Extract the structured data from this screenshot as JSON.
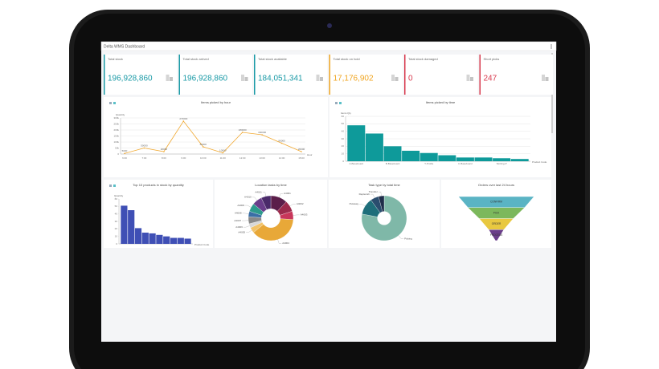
{
  "header": {
    "title": "Delta WMS Dashboard"
  },
  "kpis": [
    {
      "label": "Total stock",
      "value": "196,928,860",
      "color": "#1a9aa6"
    },
    {
      "label": "Total stock arrived",
      "value": "196,928,860",
      "color": "#1a9aa6"
    },
    {
      "label": "Total stock available",
      "value": "184,051,341",
      "color": "#1a9aa6"
    },
    {
      "label": "Total stock on hold",
      "value": "17,176,902",
      "color": "#f0a520"
    },
    {
      "label": "Total stock damaged",
      "value": "0",
      "color": "#d83a4e"
    },
    {
      "label": "Short picks",
      "value": "247",
      "color": "#d83a4e"
    }
  ],
  "chart_data": [
    {
      "type": "line",
      "title": "Items picked by hour",
      "color": "#f0a830",
      "categories": [
        "6:00",
        "7:00",
        "8:00",
        "9:00",
        "10:00",
        "11:00",
        "12:00",
        "13:00",
        "14:00",
        "15:00"
      ],
      "values": [
        5000,
        50000,
        20000,
        273000,
        60000,
        10000,
        180000,
        160000,
        90000,
        20000
      ],
      "value_labels": [
        "5000",
        "50000",
        "20000",
        "273000",
        "60000",
        "10000",
        "180000",
        "160000",
        "90000",
        "20000"
      ],
      "ylim": [
        0,
        300000
      ],
      "yticks": [
        0,
        {
          "value": 50000,
          "label": "50k"
        },
        {
          "value": 100000,
          "label": "100k"
        },
        {
          "value": 150000,
          "label": "150k"
        },
        {
          "value": 200000,
          "label": "200k"
        },
        {
          "value": 250000,
          "label": "250k"
        },
        {
          "value": 300000,
          "label": "300k"
        }
      ],
      "y_label": "Quantity",
      "x_label": "Hour",
      "grid": true
    },
    {
      "type": "bar",
      "title": "Items picked by time",
      "color": "#0e9a9a",
      "categories": [
        "A-Baseboard",
        null,
        "B-Baseboard",
        null,
        "T-Profile",
        null,
        "C-Baseboard",
        null,
        "Skirting-P",
        null
      ],
      "values": [
        48,
        37,
        20,
        14,
        11,
        8,
        5,
        5,
        4,
        3
      ],
      "ylim": [
        0,
        60
      ],
      "yticks": [
        0,
        10,
        20,
        30,
        40,
        50,
        60
      ],
      "y_label": "Items Qty",
      "x_label": "Product Code",
      "grid": true
    },
    {
      "type": "bar",
      "title": "Top 10 products in stock by quantity",
      "color": "#3f4fb5",
      "categories": [
        null,
        null,
        null,
        null,
        null,
        null,
        null,
        null,
        null,
        null
      ],
      "values": [
        51,
        45,
        21,
        15,
        14,
        12,
        10,
        8,
        8,
        7
      ],
      "ylim": [
        0,
        60
      ],
      "yticks": [
        0,
        10,
        20,
        30,
        40,
        50,
        60
      ],
      "y_label": "Quantity",
      "x_label": "Product Code",
      "grid": false
    },
    {
      "type": "pie",
      "title": "Location tasks by time",
      "categories": [
        "A4001",
        "A4002",
        "A4003",
        "A4004",
        "A4005",
        "A4006",
        "A4007",
        "A4008",
        "A4009",
        "A4010",
        "A4011"
      ],
      "values": [
        12,
        8,
        6,
        38,
        4,
        3,
        5,
        4,
        6,
        7,
        7
      ],
      "colors": [
        "#5b1e4a",
        "#9c2a4c",
        "#c8365a",
        "#e8a838",
        "#f2c36a",
        "#d8d8d8",
        "#8a8a8a",
        "#3a6ea5",
        "#2d9a8c",
        "#6a3d8a",
        "#4a2a6a"
      ],
      "inner": 0.42
    },
    {
      "type": "pie",
      "title": "Task type by total time",
      "categories": [
        "Picking",
        "Putaway",
        "Replenish",
        "Transfer"
      ],
      "values": [
        78,
        12,
        6,
        4
      ],
      "colors": [
        "#7fb8a8",
        "#1e6e7a",
        "#2a4d6e",
        "#1f2d4a"
      ],
      "inner": 0.3
    },
    {
      "type": "funnel",
      "title": "Orders over last 24 hours",
      "categories": [
        "CONFIRM",
        "PICK",
        "ORDER",
        "PROCESS"
      ],
      "values": [
        100,
        75,
        45,
        20
      ],
      "colors": [
        "#5ab4c4",
        "#7cb85c",
        "#e8c840",
        "#6a3d8a"
      ]
    }
  ]
}
